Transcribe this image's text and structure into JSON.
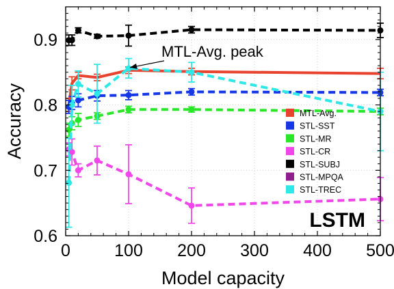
{
  "chart_data": {
    "type": "line",
    "xlabel": "Model capacity",
    "ylabel": "Accuracy",
    "xlim": [
      0,
      500
    ],
    "ylim": [
      0.6,
      0.95
    ],
    "xticks": [
      0,
      100,
      200,
      300,
      400,
      500
    ],
    "yticks": [
      0.6,
      0.7,
      0.8,
      0.9
    ],
    "ytick_labels": [
      "0.6",
      "0.7",
      "0.8",
      "0.9"
    ],
    "grid": true,
    "legend_position": "right",
    "panel_label": "LSTM",
    "annotation": {
      "text": "MTL-Avg. peak",
      "x": 100,
      "y": 0.855
    },
    "series": [
      {
        "name": "MTL-Avg.",
        "color": "#e8432e",
        "dashed": false,
        "marker": false,
        "x": [
          5,
          10,
          20,
          50,
          100,
          200,
          500
        ],
        "y": [
          0.8,
          0.833,
          0.845,
          0.842,
          0.853,
          0.851,
          0.848
        ],
        "err": [
          0.01,
          0.01,
          0.005,
          0.005,
          0.005,
          0.005,
          0.008
        ]
      },
      {
        "name": "STL-SST",
        "color": "#1637e6",
        "dashed": true,
        "marker": true,
        "x": [
          5,
          10,
          20,
          50,
          100,
          200,
          500
        ],
        "y": [
          0.797,
          0.803,
          0.807,
          0.814,
          0.815,
          0.82,
          0.819
        ],
        "err": [
          0.01,
          0.01,
          0.01,
          0.008,
          0.007,
          0.005,
          0.005
        ]
      },
      {
        "name": "STL-MR",
        "color": "#29e629",
        "dashed": true,
        "marker": true,
        "x": [
          5,
          10,
          20,
          50,
          100,
          200,
          500
        ],
        "y": [
          0.762,
          0.772,
          0.777,
          0.783,
          0.793,
          0.793,
          0.79
        ],
        "err": [
          0.01,
          0.01,
          0.01,
          0.005,
          0.005,
          0.004,
          0.005
        ]
      },
      {
        "name": "STL-CR",
        "color": "#f046ea",
        "dashed": true,
        "marker": true,
        "x": [
          5,
          10,
          20,
          50,
          100,
          200,
          500
        ],
        "y": [
          0.732,
          0.728,
          0.7,
          0.715,
          0.694,
          0.646,
          0.656
        ],
        "err": [
          0.01,
          0.02,
          0.01,
          0.022,
          0.045,
          0.027,
          0.033
        ]
      },
      {
        "name": "STL-SUBJ",
        "color": "#000000",
        "dashed": true,
        "marker": true,
        "x": [
          5,
          10,
          20,
          50,
          100,
          200,
          500
        ],
        "y": [
          0.899,
          0.899,
          0.914,
          0.905,
          0.906,
          0.915,
          0.914
        ],
        "err": [
          0.008,
          0.008,
          0.004,
          0.003,
          0.016,
          0.005,
          0.011
        ]
      },
      {
        "name": "STL-MPQA",
        "color": "#8e1f8c",
        "dashed": true,
        "marker": true,
        "x": [],
        "y": [],
        "err": []
      },
      {
        "name": "STL-TREC",
        "color": "#2ee8e8",
        "dashed": true,
        "marker": true,
        "x": [
          5,
          10,
          20,
          50,
          100,
          200,
          500
        ],
        "y": [
          0.681,
          0.8,
          0.832,
          0.817,
          0.856,
          0.85,
          0.79
        ],
        "err": [
          0.068,
          0.03,
          0.02,
          0.045,
          0.015,
          0.015,
          0.06
        ]
      }
    ]
  }
}
